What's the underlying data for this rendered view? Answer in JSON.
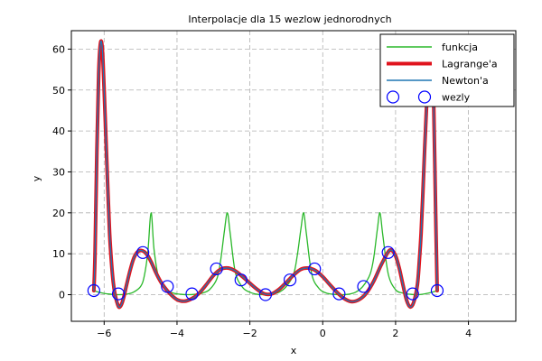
{
  "chart_data": {
    "type": "line",
    "title": "Interpolacje dla 15 wezlow jednorodnych",
    "xlabel": "x",
    "ylabel": "y",
    "xlim": [
      -6.9,
      5.3
    ],
    "ylim": [
      -6.5,
      64.5
    ],
    "xticks": [
      -6,
      -4,
      -2,
      0,
      2,
      4
    ],
    "yticks": [
      0,
      10,
      20,
      30,
      40,
      50,
      60
    ],
    "xtick_labels": [
      "−6",
      "−4",
      "−2",
      "0",
      "2",
      "4"
    ],
    "ytick_labels": [
      "0",
      "10",
      "20",
      "30",
      "40",
      "50",
      "60"
    ],
    "grid": true,
    "legend_position": "top-right",
    "function_peaks_x": [
      -4.712,
      -2.618,
      -0.524,
      1.571
    ],
    "series": [
      {
        "name": "funkcja",
        "color": "#2ab82a",
        "style": "line",
        "x": [
          -6.283,
          -6.15,
          -6.0,
          -5.8,
          -5.6,
          -5.4,
          -5.2,
          -5.0,
          -4.9,
          -4.8,
          -4.712,
          -4.63,
          -4.5,
          -4.3,
          -4.1,
          -3.9,
          -3.7,
          -3.5,
          -3.3,
          -3.1,
          -2.9,
          -2.8,
          -2.7,
          -2.618,
          -2.54,
          -2.4,
          -2.2,
          -2.0,
          -1.8,
          -1.6,
          -1.4,
          -1.2,
          -1.0,
          -0.8,
          -0.7,
          -0.6,
          -0.524,
          -0.45,
          -0.3,
          -0.1,
          0.1,
          0.3,
          0.5,
          0.7,
          0.9,
          1.1,
          1.3,
          1.4,
          1.5,
          1.571,
          1.65,
          1.8,
          2.0,
          2.2,
          2.4,
          2.6,
          2.8,
          3.0,
          3.142
        ],
        "y": [
          1.0,
          0.6,
          0.3,
          0.1,
          0.0,
          0.1,
          0.6,
          2.0,
          4.5,
          10.5,
          20.0,
          11.0,
          4.0,
          1.2,
          0.4,
          0.1,
          0.0,
          0.1,
          0.4,
          1.3,
          4.0,
          8.5,
          15.5,
          20.0,
          15.0,
          5.5,
          1.8,
          0.6,
          0.1,
          0.0,
          0.1,
          0.6,
          2.0,
          5.0,
          9.5,
          16.0,
          20.0,
          15.0,
          5.0,
          1.5,
          0.4,
          0.1,
          0.0,
          0.1,
          0.6,
          2.0,
          5.0,
          9.0,
          16.0,
          20.0,
          14.5,
          5.0,
          1.2,
          0.4,
          0.1,
          0.0,
          0.2,
          0.6,
          1.0
        ]
      },
      {
        "name": "Lagrange'a",
        "color": "#e0141e",
        "style": "thick-line",
        "x": [
          -6.283,
          -6.25,
          -6.2,
          -6.15,
          -6.1,
          -6.05,
          -6.0,
          -5.95,
          -5.9,
          -5.85,
          -5.8,
          -5.75,
          -5.7,
          -5.65,
          -5.6,
          -5.55,
          -5.5,
          -5.45,
          -5.4,
          -5.3,
          -5.2,
          -5.1,
          -5.0,
          -4.9,
          -4.8,
          -4.7,
          -4.6,
          -4.5,
          -4.4,
          -4.2,
          -4.0,
          -3.8,
          -3.6,
          -3.4,
          -3.2,
          -3.0,
          -2.8,
          -2.6,
          -2.4,
          -2.2,
          -2.0,
          -1.8,
          -1.6,
          -1.4,
          -1.2,
          -1.0,
          -0.8,
          -0.6,
          -0.4,
          -0.2,
          0.0,
          0.2,
          0.4,
          0.6,
          0.8,
          1.0,
          1.2,
          1.4,
          1.6,
          1.8,
          1.9,
          2.0,
          2.1,
          2.2,
          2.3,
          2.4,
          2.5,
          2.6,
          2.65,
          2.7,
          2.75,
          2.8,
          2.85,
          2.9,
          2.95,
          3.0,
          3.05,
          3.1,
          3.142
        ],
        "y": [
          1.0,
          10.0,
          35.0,
          54.0,
          61.5,
          60.0,
          50.0,
          38.0,
          26.0,
          15.0,
          8.0,
          3.0,
          0.0,
          -1.8,
          -3.0,
          -2.8,
          -1.8,
          -0.2,
          1.8,
          5.5,
          8.6,
          10.3,
          10.8,
          10.5,
          9.5,
          7.8,
          5.8,
          4.0,
          2.5,
          0.3,
          -1.2,
          -1.6,
          -1.0,
          0.3,
          2.4,
          4.7,
          6.2,
          6.5,
          5.8,
          4.4,
          2.8,
          1.3,
          0.2,
          0.2,
          1.3,
          3.0,
          4.8,
          6.2,
          6.5,
          5.9,
          4.4,
          2.4,
          0.5,
          -1.0,
          -1.7,
          -1.2,
          0.4,
          3.3,
          7.2,
          10.5,
          10.8,
          9.5,
          6.5,
          2.5,
          -1.3,
          -3.0,
          -1.8,
          2.5,
          8.0,
          15.0,
          25.0,
          36.0,
          46.0,
          55.0,
          61.0,
          59.0,
          45.0,
          20.0,
          1.0
        ]
      },
      {
        "name": "Newton'a",
        "color": "#1f77b4",
        "style": "line",
        "x": [
          -6.283,
          -6.25,
          -6.2,
          -6.15,
          -6.1,
          -6.05,
          -6.0,
          -5.95,
          -5.9,
          -5.85,
          -5.8,
          -5.75,
          -5.7,
          -5.65,
          -5.6,
          -5.55,
          -5.5,
          -5.45,
          -5.4,
          -5.3,
          -5.2,
          -5.1,
          -5.0,
          -4.9,
          -4.8,
          -4.7,
          -4.6,
          -4.5,
          -4.4,
          -4.2,
          -4.0,
          -3.8,
          -3.6,
          -3.4,
          -3.2,
          -3.0,
          -2.8,
          -2.6,
          -2.4,
          -2.2,
          -2.0,
          -1.8,
          -1.6,
          -1.4,
          -1.2,
          -1.0,
          -0.8,
          -0.6,
          -0.4,
          -0.2,
          0.0,
          0.2,
          0.4,
          0.6,
          0.8,
          1.0,
          1.2,
          1.4,
          1.6,
          1.8,
          1.9,
          2.0,
          2.1,
          2.2,
          2.3,
          2.4,
          2.5,
          2.6,
          2.65,
          2.7,
          2.75,
          2.8,
          2.85,
          2.9,
          2.95,
          3.0,
          3.05,
          3.1,
          3.142
        ],
        "y": [
          1.0,
          10.0,
          35.0,
          54.0,
          61.5,
          60.0,
          50.0,
          38.0,
          26.0,
          15.0,
          8.0,
          3.0,
          0.0,
          -1.8,
          -3.0,
          -2.8,
          -1.8,
          -0.2,
          1.8,
          5.5,
          8.6,
          10.3,
          10.8,
          10.5,
          9.5,
          7.8,
          5.8,
          4.0,
          2.5,
          0.3,
          -1.2,
          -1.6,
          -1.0,
          0.3,
          2.4,
          4.7,
          6.2,
          6.5,
          5.8,
          4.4,
          2.8,
          1.3,
          0.2,
          0.2,
          1.3,
          3.0,
          4.8,
          6.2,
          6.5,
          5.9,
          4.4,
          2.4,
          0.5,
          -1.0,
          -1.7,
          -1.2,
          0.4,
          3.3,
          7.2,
          10.5,
          10.8,
          9.5,
          6.5,
          2.5,
          -1.3,
          -3.0,
          -1.8,
          2.5,
          8.0,
          15.0,
          25.0,
          36.0,
          46.0,
          55.0,
          61.0,
          59.0,
          45.0,
          20.0,
          1.0
        ]
      },
      {
        "name": "wezly",
        "color": "#0000ff",
        "style": "markers",
        "x": [
          -6.283,
          -5.61,
          -4.937,
          -4.264,
          -3.59,
          -2.917,
          -2.244,
          -1.571,
          -0.898,
          -0.224,
          0.449,
          1.122,
          1.795,
          2.468,
          3.142
        ],
        "y": [
          1.0,
          0.2,
          10.3,
          2.0,
          0.2,
          6.3,
          3.6,
          0.0,
          3.6,
          6.3,
          0.2,
          2.0,
          10.3,
          0.2,
          1.0
        ]
      }
    ]
  }
}
